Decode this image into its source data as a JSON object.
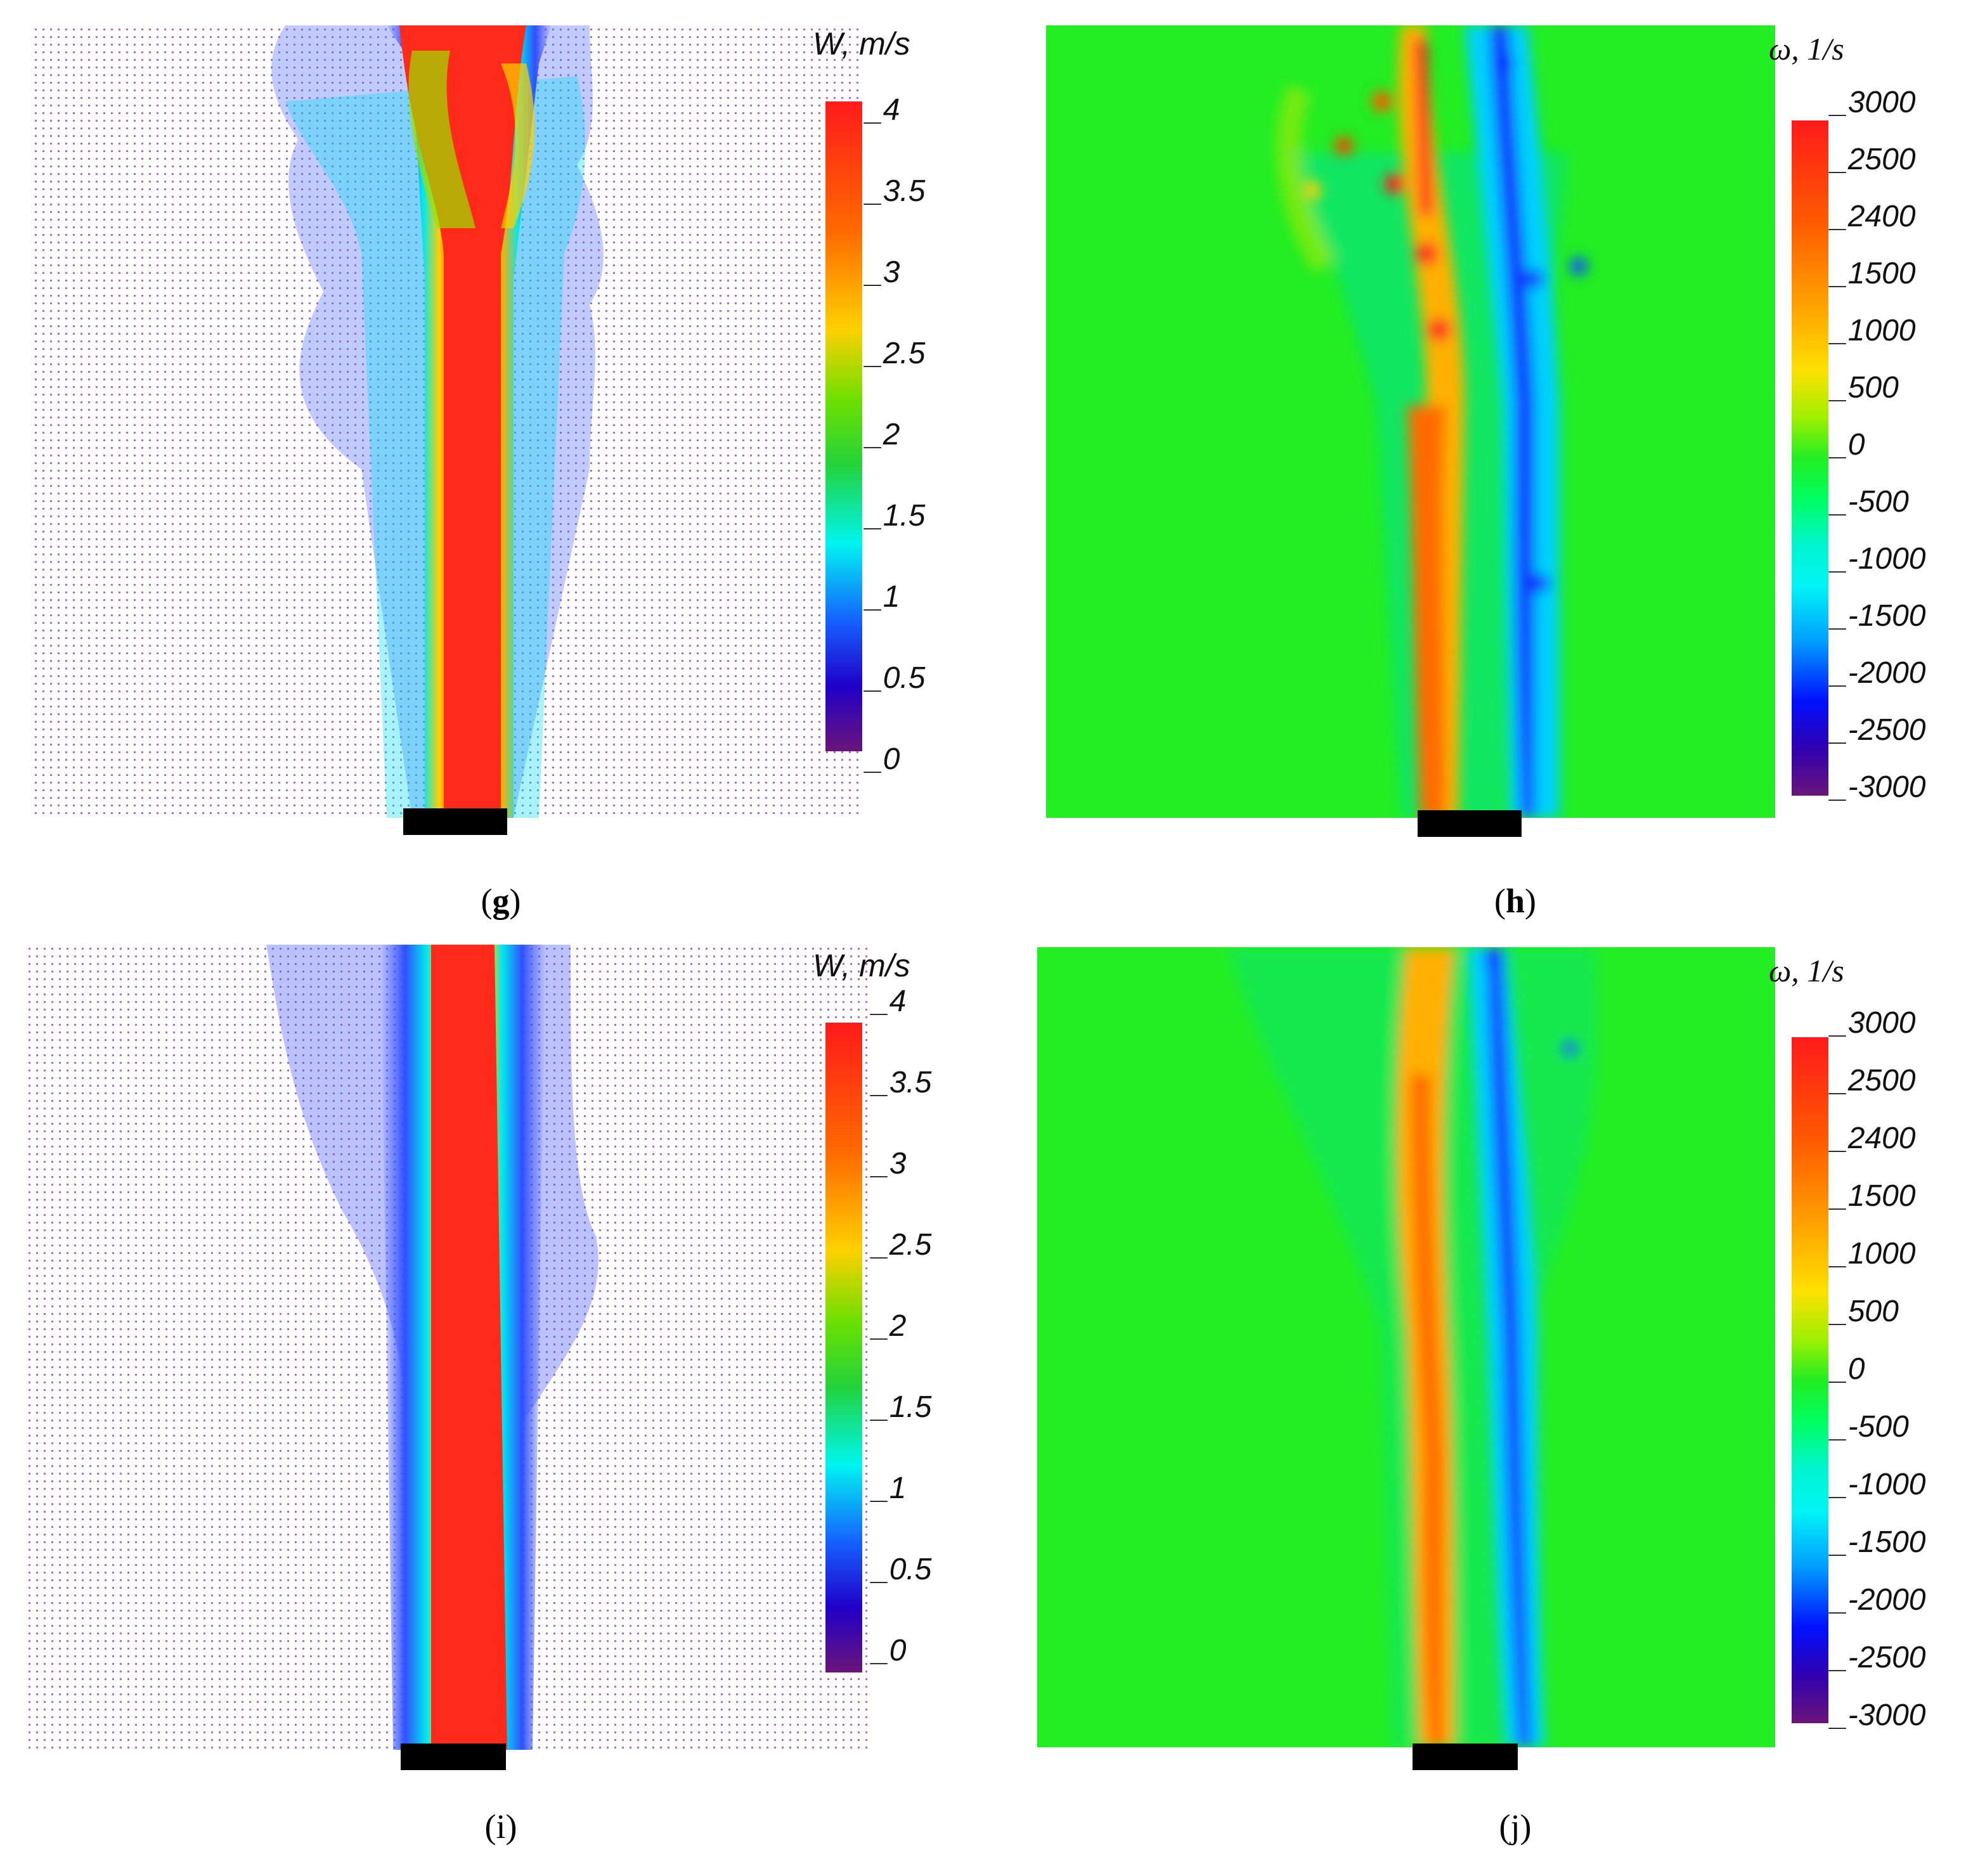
{
  "panels": [
    {
      "id": "g",
      "label": "g",
      "kind": "velocity",
      "colorbar_title": "W, m/s",
      "ticks": [
        "4",
        "3.5",
        "3",
        "2.5",
        "2",
        "1.5",
        "1",
        "0.5",
        "0"
      ]
    },
    {
      "id": "h",
      "label": "h",
      "kind": "vorticity",
      "colorbar_title": "ω, 1/s",
      "ticks": [
        "3000",
        "2500",
        "2400",
        "1500",
        "1000",
        "500",
        "0",
        "-500",
        "-1000",
        "-1500",
        "-2000",
        "-2500",
        "-3000"
      ]
    },
    {
      "id": "i",
      "label": "i",
      "kind": "velocity",
      "colorbar_title": "W, m/s",
      "ticks": [
        "4",
        "3.5",
        "3",
        "2.5",
        "2",
        "1.5",
        "1",
        "0.5",
        "0"
      ]
    },
    {
      "id": "j",
      "label": "j",
      "kind": "vorticity",
      "colorbar_title": "ω, 1/s",
      "ticks": [
        "3000",
        "2500",
        "2400",
        "1500",
        "1000",
        "500",
        "0",
        "-500",
        "-1000",
        "-1500",
        "-2000",
        "-2500",
        "-3000"
      ]
    }
  ],
  "colors": {
    "velocity_scale": [
      "#ff1a1a",
      "#ff6600",
      "#ffcc00",
      "#88e000",
      "#22d33a",
      "#00f5f0",
      "#1560ff",
      "#2000c8",
      "#6a157a"
    ],
    "vorticity_scale": [
      "#ff1a1a",
      "#ff5a00",
      "#ffa000",
      "#ffe000",
      "#a0f000",
      "#22ee22",
      "#00ff40",
      "#00f0a0",
      "#00f5f5",
      "#00a0ff",
      "#0010ff",
      "#3000b0",
      "#6a157a"
    ],
    "background_green": "#22ee22",
    "nozzle": "#000000"
  }
}
